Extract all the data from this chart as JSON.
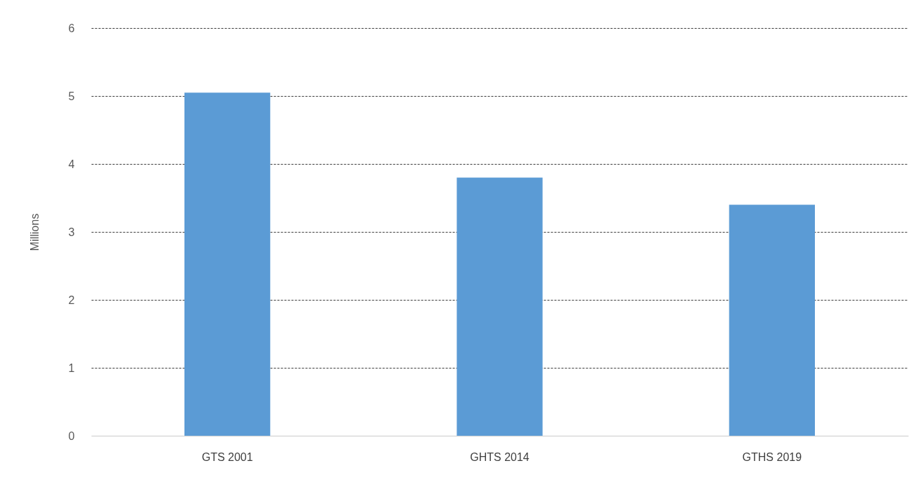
{
  "chart_data": {
    "type": "bar",
    "ylabel": "Millions",
    "categories": [
      "GTS 2001",
      "GHTS 2014",
      "GTHS 2019"
    ],
    "values": [
      5.05,
      3.8,
      3.4
    ],
    "color": "#5b9bd5",
    "ylim": [
      0,
      6
    ],
    "yticks": [
      0,
      1,
      2,
      3,
      4,
      5,
      6
    ],
    "grid": "y"
  }
}
